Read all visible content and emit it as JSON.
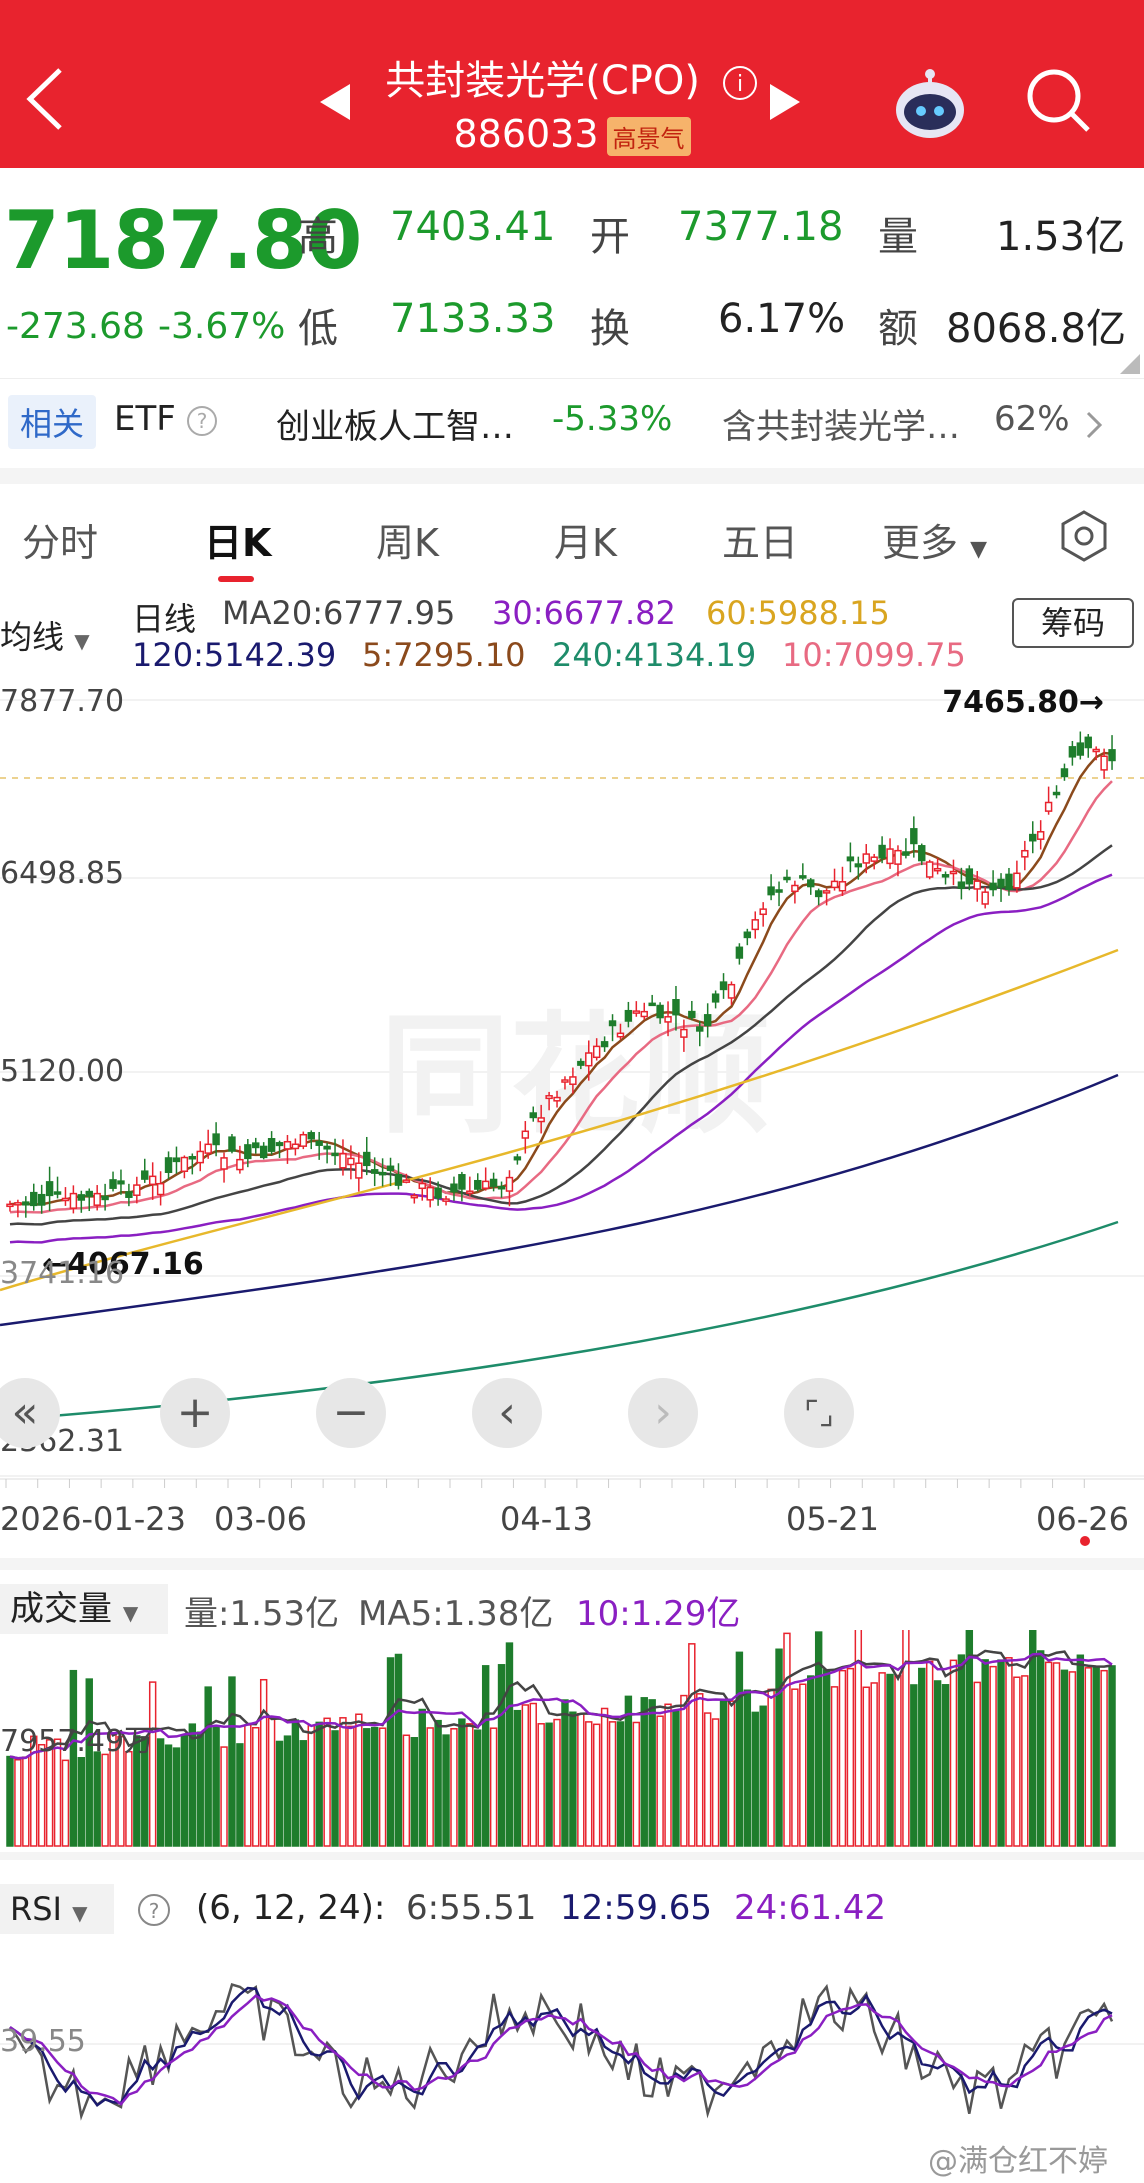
{
  "header": {
    "title": "共封装光学(CPO)",
    "code": "886033",
    "badge": "高景气",
    "bg_color": "#e8232e"
  },
  "quote": {
    "price": "7187.80",
    "change": "-273.68",
    "change_pct": "-3.67%",
    "high_label": "高",
    "high": "7403.41",
    "open_label": "开",
    "open": "7377.18",
    "volume_label": "量",
    "volume": "1.53亿",
    "low_label": "低",
    "low": "7133.33",
    "turnover_label": "换",
    "turnover": "6.17%",
    "amount_label": "额",
    "amount": "8068.8亿"
  },
  "related": {
    "tag": "相关",
    "etf": "ETF",
    "etf_name": "创业板人工智…",
    "etf_pct": "-5.33%",
    "contain": "含共封装光学…",
    "contain_pct": "62%"
  },
  "tabs": [
    {
      "label": "分时"
    },
    {
      "label": "日K"
    },
    {
      "label": "周K"
    },
    {
      "label": "月K"
    },
    {
      "label": "五日"
    },
    {
      "label": "更多"
    }
  ],
  "ma_legend": {
    "dropdown": "均线",
    "period": "日线",
    "ma20": "MA20:6777.95",
    "ma30": "30:6677.82",
    "ma60": "60:5988.15",
    "ma120": "120:5142.39",
    "ma5": "5:7295.10",
    "ma240": "240:4134.19",
    "ma10": "10:7099.75",
    "chip_button": "筹码"
  },
  "chart_data": {
    "type": "candlestick",
    "y_ticks": [
      "7877.70",
      "6498.85",
      "5120.00",
      "3741.16",
      "2362.31"
    ],
    "x_ticks": [
      "2026-01-23",
      "03-06",
      "04-13",
      "05-21",
      "06-26"
    ],
    "max_marker": "7465.80→",
    "min_marker": "←4067.16",
    "colors": {
      "up": "#e8232e",
      "down": "#1e7d2c",
      "ma5": "#8b4a1c",
      "ma10": "#e86a82",
      "ma20": "#444444",
      "ma30": "#8a1fc2",
      "ma60": "#e7b82b",
      "ma120": "#1a1a6e",
      "ma240": "#1e8c6a"
    }
  },
  "volume": {
    "dropdown": "成交量",
    "vol": "量:1.53亿",
    "ma5": "MA5:1.38亿",
    "ma10": "10:1.29亿",
    "axis_label": "7957.49万"
  },
  "rsi": {
    "dropdown": "RSI",
    "params": "(6, 12, 24):",
    "rsi6": "6:55.51",
    "rsi12": "12:59.65",
    "rsi24": "24:61.42",
    "axis_label": "39.55"
  },
  "watermark": "@满仓红不婷"
}
